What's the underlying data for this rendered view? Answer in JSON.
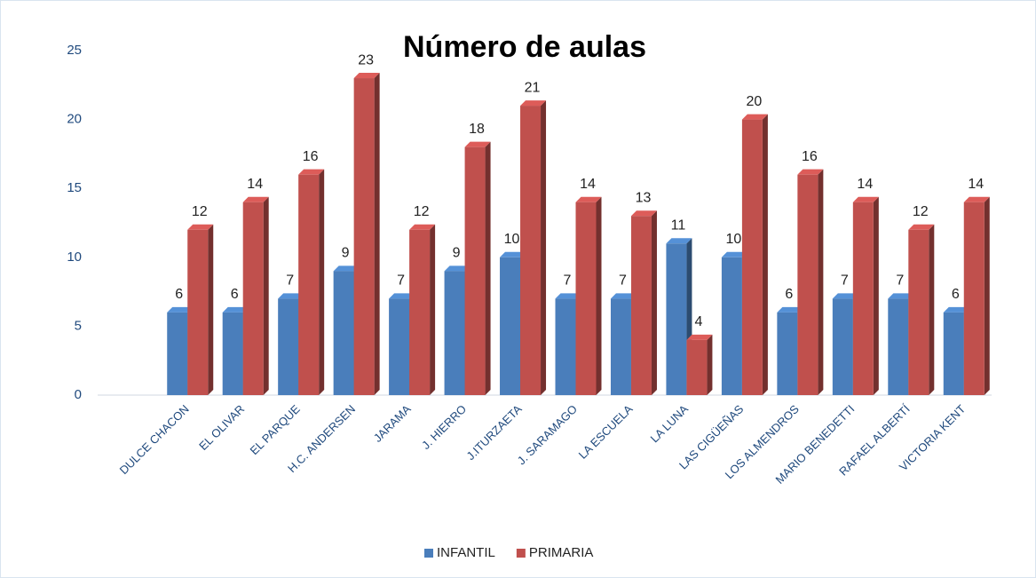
{
  "chart_data": {
    "type": "bar3d",
    "title": "Número de aulas",
    "categories": [
      "DULCE CHACON",
      "EL OLIVAR",
      "EL PARQUE",
      "H.C. ANDERSEN",
      "JARAMA",
      "J. HIERRO",
      "J.ITURZAETA",
      "J. SARAMAGO",
      "LA ESCUELA",
      "LA LUNA",
      "LAS CIGÜEÑAS",
      "LOS ALMENDROS",
      "MARIO BENEDETTI",
      "RAFAEL ALBERTÍ",
      "VICTORIA KENT"
    ],
    "series": [
      {
        "name": "INFANTIL",
        "color": "#4a7ebb",
        "values": [
          6,
          6,
          7,
          9,
          7,
          9,
          10,
          7,
          7,
          11,
          10,
          6,
          7,
          7,
          6
        ]
      },
      {
        "name": "PRIMARIA",
        "color": "#c0504d",
        "values": [
          12,
          14,
          16,
          23,
          12,
          18,
          21,
          14,
          13,
          4,
          20,
          16,
          14,
          12,
          14
        ]
      }
    ],
    "ylim": [
      0,
      25
    ],
    "yticks": [
      0,
      5,
      10,
      15,
      20,
      25
    ],
    "legend": "bottom"
  }
}
